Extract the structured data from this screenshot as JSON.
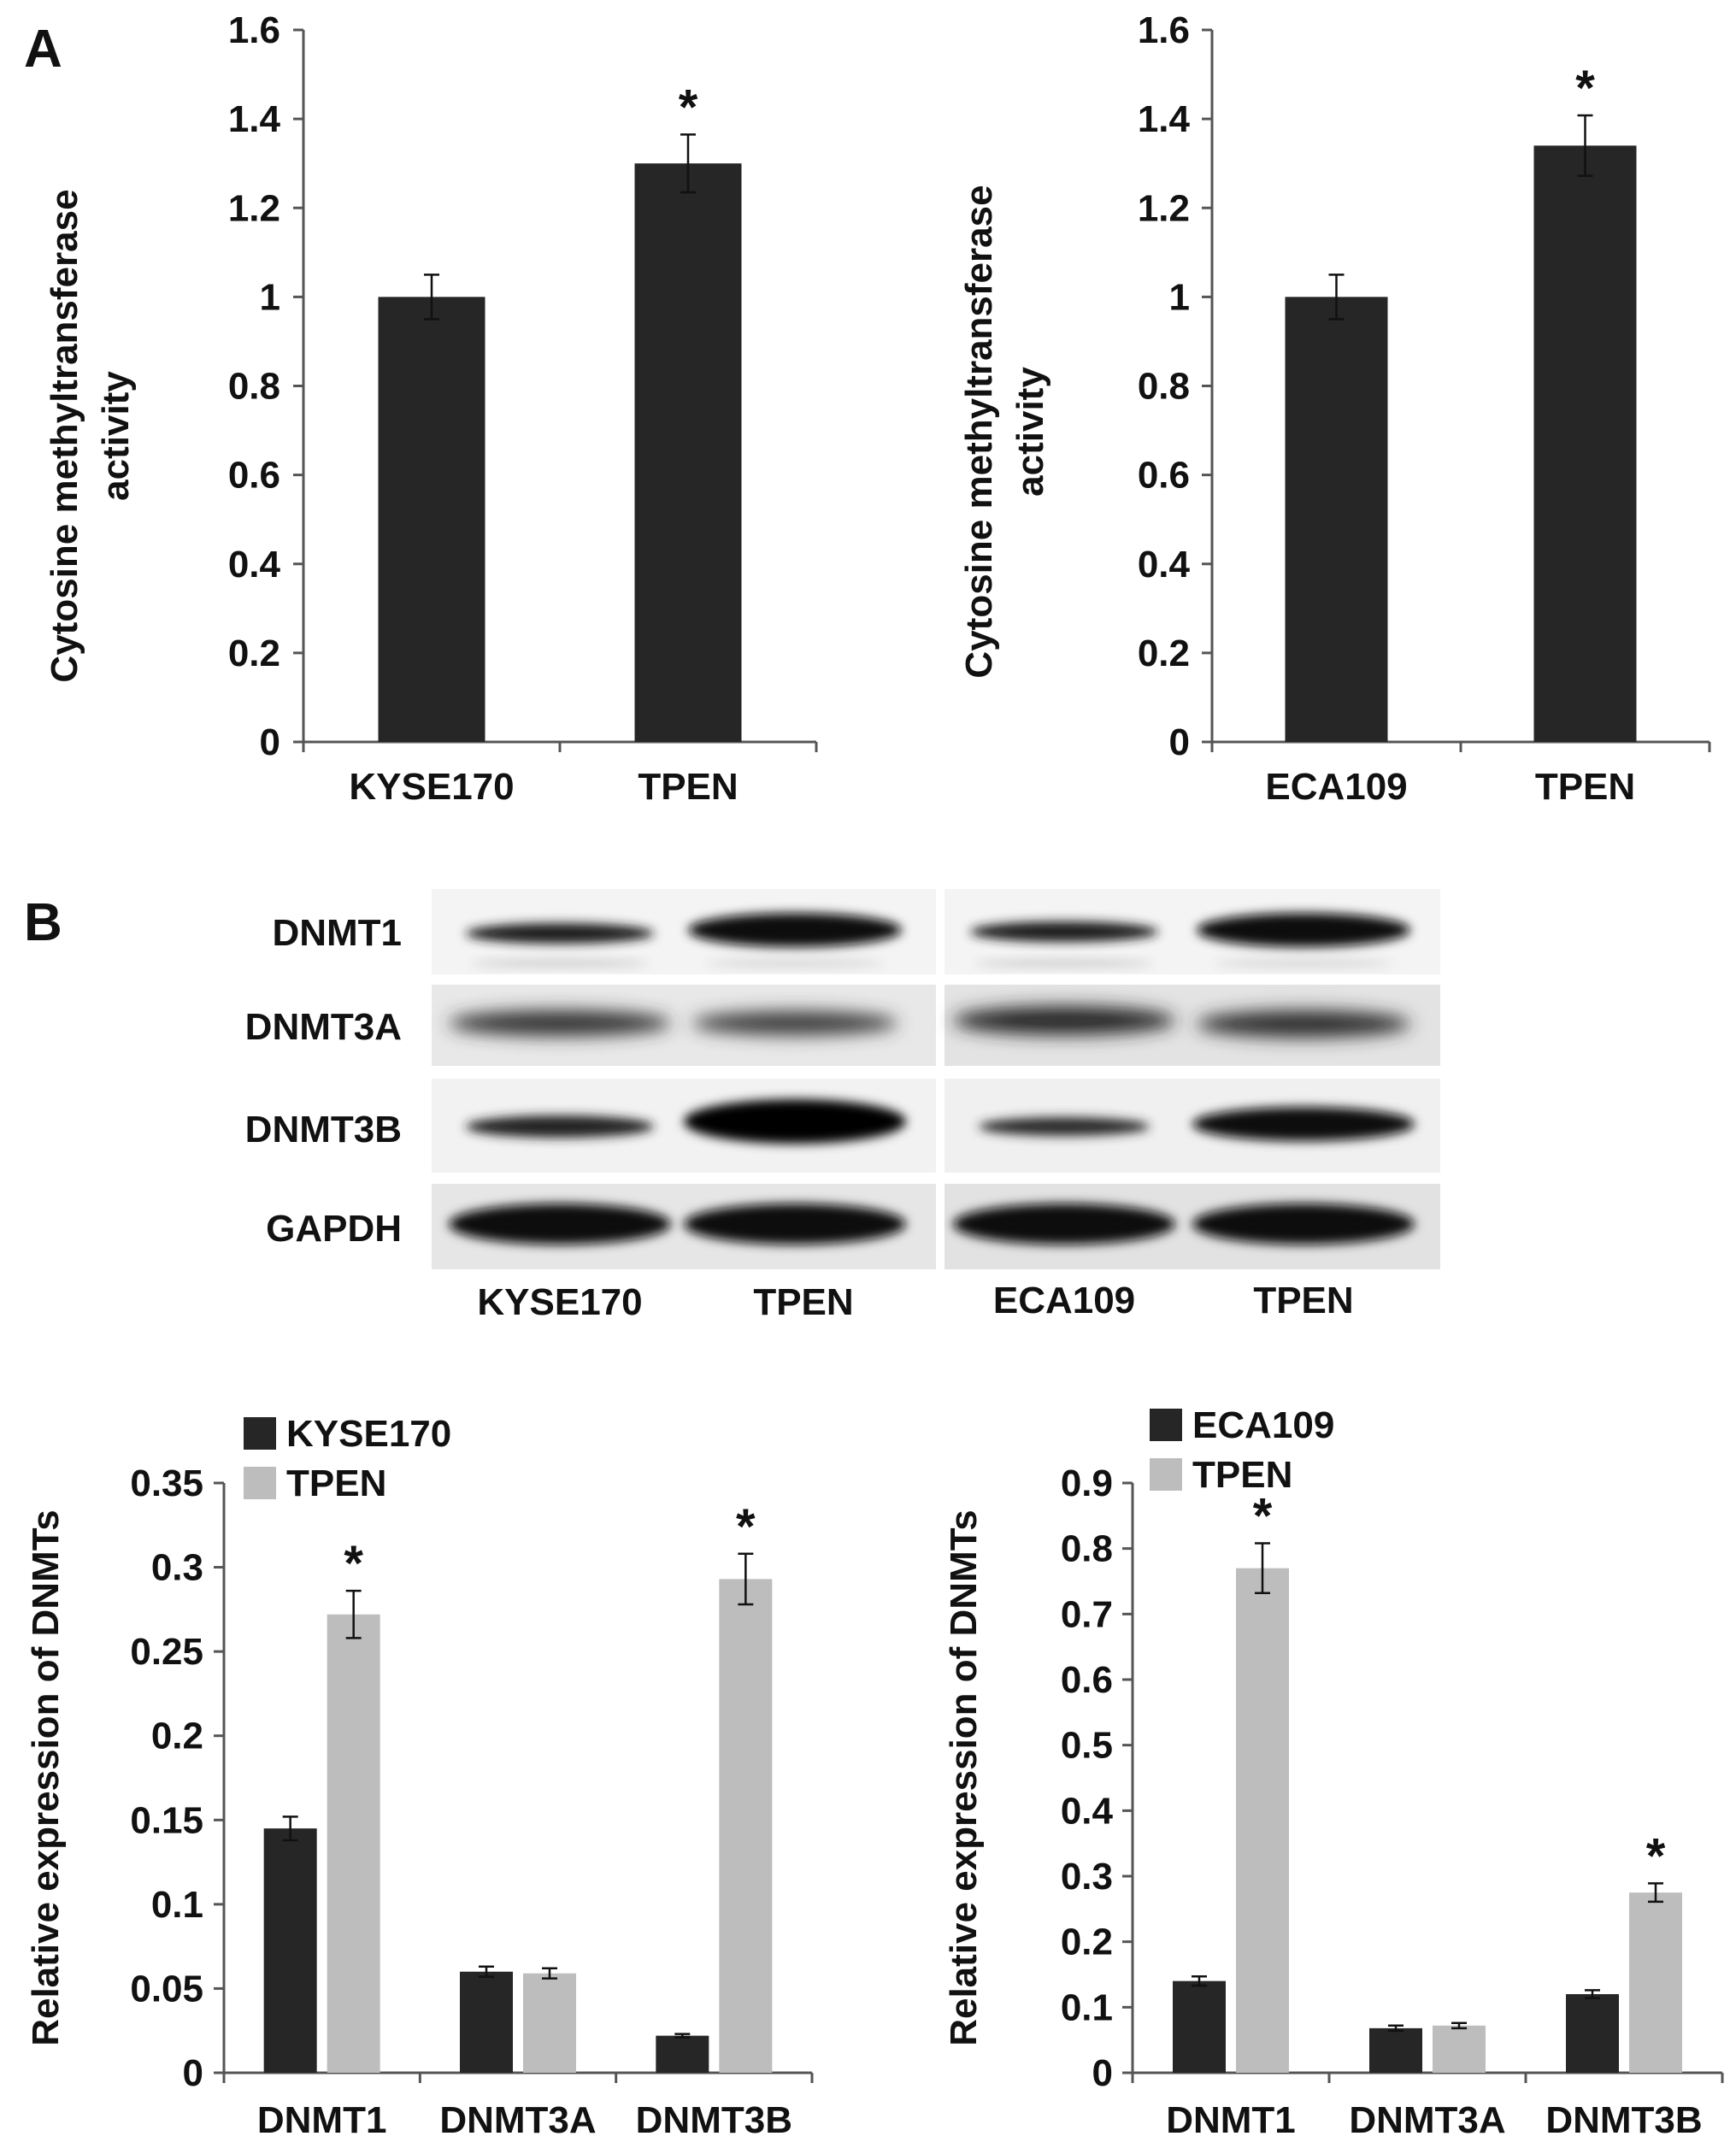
{
  "panel_labels": {
    "a": "A",
    "b": "B"
  },
  "colors": {
    "dark": "#262626",
    "light": "#bdbdbd",
    "axis": "#555555"
  },
  "blot": {
    "rows": [
      "DNMT1",
      "DNMT3A",
      "DNMT3B",
      "GAPDH"
    ],
    "lanes": [
      "KYSE170",
      "TPEN",
      "ECA109",
      "TPEN"
    ]
  },
  "chart_data": [
    {
      "id": "a-left",
      "type": "bar",
      "categories": [
        "KYSE170",
        "TPEN"
      ],
      "values": [
        1.0,
        1.3
      ],
      "errors": [
        0.05,
        0.065
      ],
      "annotations": [
        "",
        "*"
      ],
      "ylabel_lines": [
        "Cytosine methyltransferase",
        "activity"
      ],
      "yticks": [
        "0",
        "0.2",
        "0.4",
        "0.6",
        "0.8",
        "1",
        "1.2",
        "1.4",
        "1.6"
      ],
      "ylim": [
        0,
        1.6
      ]
    },
    {
      "id": "a-right",
      "type": "bar",
      "categories": [
        "ECA109",
        "TPEN"
      ],
      "values": [
        1.0,
        1.34
      ],
      "errors": [
        0.05,
        0.068
      ],
      "annotations": [
        "",
        "*"
      ],
      "ylabel_lines": [
        "Cytosine methyltransferase",
        "activity"
      ],
      "yticks": [
        "0",
        "0.2",
        "0.4",
        "0.6",
        "0.8",
        "1",
        "1.2",
        "1.4",
        "1.6"
      ],
      "ylim": [
        0,
        1.6
      ]
    },
    {
      "id": "b-left",
      "type": "bar",
      "categories": [
        "DNMT1",
        "DNMT3A",
        "DNMT3B"
      ],
      "series": [
        {
          "name": "KYSE170",
          "values": [
            0.145,
            0.06,
            0.022
          ],
          "errors": [
            0.007,
            0.003,
            0.001
          ],
          "annotations": [
            "",
            "",
            ""
          ]
        },
        {
          "name": "TPEN",
          "values": [
            0.272,
            0.059,
            0.293
          ],
          "errors": [
            0.014,
            0.003,
            0.015
          ],
          "annotations": [
            "*",
            "",
            "*"
          ]
        }
      ],
      "ylabel": "Relative expression of DNMTs",
      "yticks": [
        "0",
        "0.05",
        "0.1",
        "0.15",
        "0.2",
        "0.25",
        "0.3",
        "0.35"
      ],
      "ylim": [
        0,
        0.35
      ]
    },
    {
      "id": "b-right",
      "type": "bar",
      "categories": [
        "DNMT1",
        "DNMT3A",
        "DNMT3B"
      ],
      "series": [
        {
          "name": "ECA109",
          "values": [
            0.14,
            0.068,
            0.12
          ],
          "errors": [
            0.007,
            0.004,
            0.006
          ],
          "annotations": [
            "",
            "",
            ""
          ]
        },
        {
          "name": "TPEN",
          "values": [
            0.77,
            0.072,
            0.275
          ],
          "errors": [
            0.038,
            0.004,
            0.014
          ],
          "annotations": [
            "*",
            "",
            "*"
          ]
        }
      ],
      "ylabel": "Relative expression of DNMTs",
      "yticks": [
        "0",
        "0.1",
        "0.2",
        "0.3",
        "0.4",
        "0.5",
        "0.6",
        "0.7",
        "0.8",
        "0.9"
      ],
      "ylim": [
        0,
        0.9
      ]
    }
  ]
}
